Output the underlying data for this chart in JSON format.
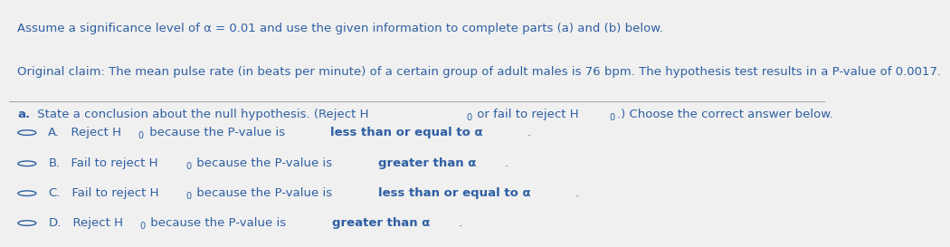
{
  "bg_color": "#f0f0f0",
  "text_color": "#2e5fa3",
  "line1": "Assume a significance level of α = 0.01 and use the given information to complete parts (a) and (b) below.",
  "line2": "Original claim: The mean pulse rate (in beats per minute) of a certain group of adult males is 76 bpm. The hypothesis test results in a P-value of 0.0017.",
  "font_size_main": 9.5,
  "font_size_options": 9.5,
  "circle_color": "#2e5fa3",
  "separator_color": "#aaaaaa",
  "options": [
    {
      "label": "A.",
      "pre": "  Reject H",
      "sub": "0",
      "normal": " because the P-value is ",
      "bold": "less than or equal to α",
      "end": "."
    },
    {
      "label": "B.",
      "pre": "  Fail to reject H",
      "sub": "0",
      "normal": " because the P-value is ",
      "bold": "greater than α",
      "end": "."
    },
    {
      "label": "C.",
      "pre": "  Fail to reject H",
      "sub": "0",
      "normal": " because the P-value is ",
      "bold": "less than or equal to α",
      "end": "."
    },
    {
      "label": "D.",
      "pre": "  Reject H",
      "sub": "0",
      "normal": " because the P-value is ",
      "bold": "greater than α",
      "end": "."
    }
  ]
}
